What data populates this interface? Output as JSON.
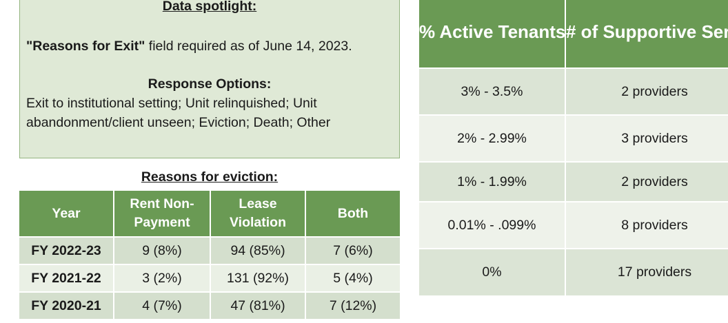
{
  "spotlight": {
    "title": "Data spotlight:",
    "field_name": "\"Reasons for Exit\"",
    "field_text": " field required as of June 14, 2023.",
    "options_title": "Response Options:",
    "options_text": "Exit to institutional setting; Unit relinquished; Unit abandonment/client unseen; Eviction; Death; Other"
  },
  "reasons_table": {
    "title": "Reasons for eviction:",
    "headers": [
      "Year",
      "Rent Non-Payment",
      "Lease Violation",
      "Both"
    ],
    "rows": [
      [
        "FY 2022-23",
        "9 (8%)",
        "94 (85%)",
        "7 (6%)"
      ],
      [
        "FY 2021-22",
        "3 (2%)",
        "131 (92%)",
        "5 (4%)"
      ],
      [
        "FY 2020-21",
        "4 (7%)",
        "47 (81%)",
        "7 (12%)"
      ]
    ]
  },
  "eviction_rate_table": {
    "headers": [
      "% Active Tenants Evicted",
      "# of Supportive Services Providers"
    ],
    "rows": [
      [
        "3% - 3.5%",
        "2 providers"
      ],
      [
        "2% - 2.99%",
        "3 providers"
      ],
      [
        "1% - 1.99%",
        "2 providers"
      ],
      [
        "0.01% - .099%",
        "8 providers"
      ],
      [
        "0%",
        "17 providers"
      ]
    ]
  }
}
